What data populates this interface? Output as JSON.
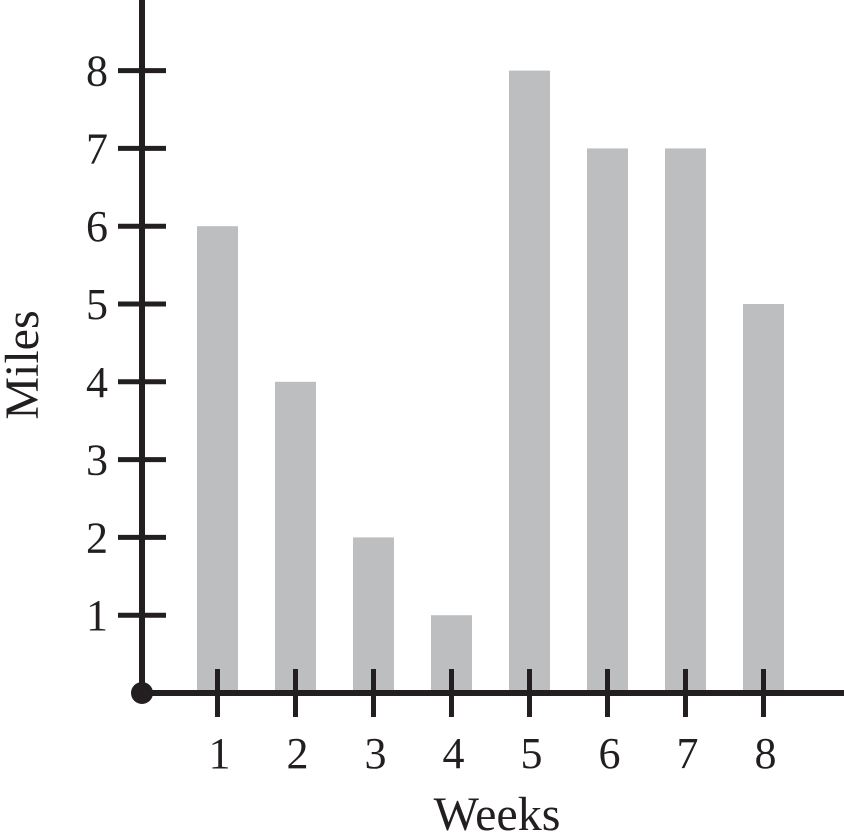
{
  "chart_data": {
    "type": "bar",
    "categories": [
      "1",
      "2",
      "3",
      "4",
      "5",
      "6",
      "7",
      "8"
    ],
    "values": [
      6,
      4,
      2,
      1,
      8,
      7,
      7,
      5
    ],
    "xlabel": "Weeks",
    "ylabel": "Miles",
    "yticks": [
      "1",
      "2",
      "3",
      "4",
      "5",
      "6",
      "7",
      "8"
    ],
    "ylim": [
      0,
      8.9
    ],
    "grid": false,
    "bar_color": "#bcbec0",
    "axis_color": "#231f20"
  }
}
